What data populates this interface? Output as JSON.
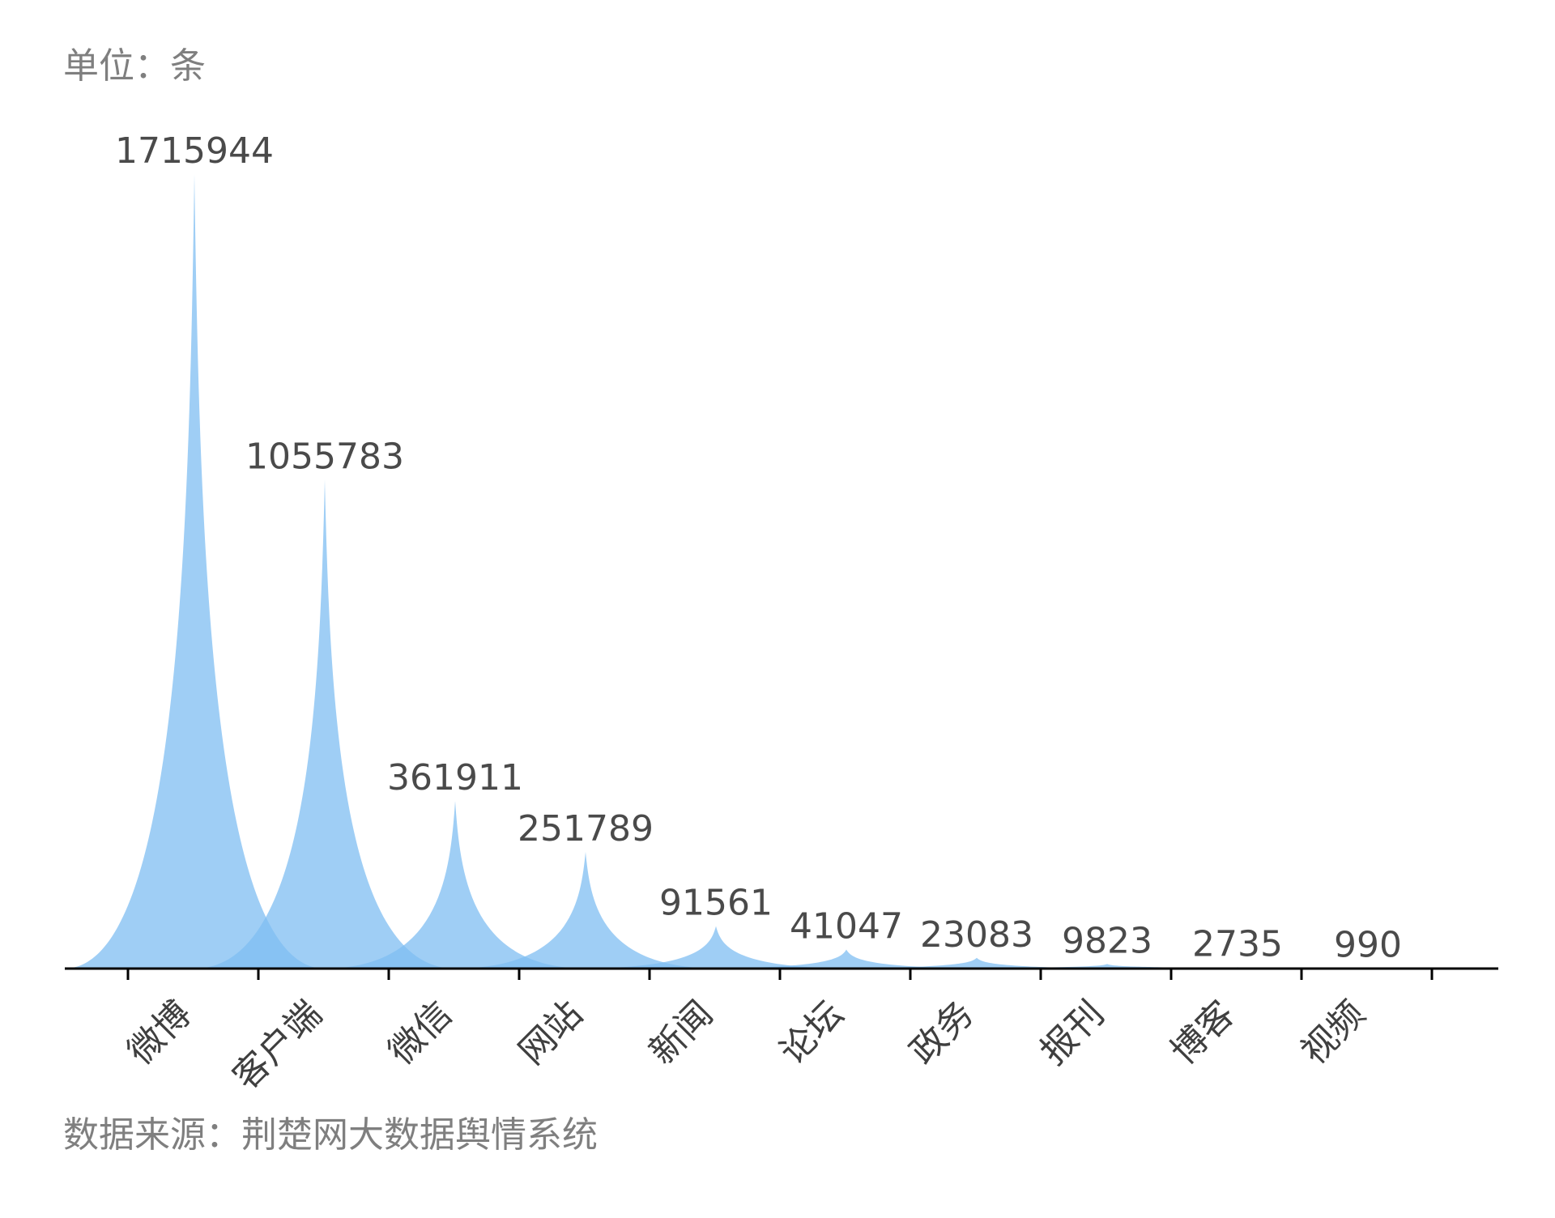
{
  "unit_text": "单位：条",
  "source_text": "数据来源：荆楚网大数据舆情系统",
  "colors": {
    "fill": "#7fbdf2",
    "axis": "#000000",
    "value_text": "#4a4a4a",
    "category_text": "#3f3f3f",
    "note_text": "#7f7f7f"
  },
  "chart_data": {
    "type": "area",
    "shape": "pictorial-spike",
    "categories": [
      "微博",
      "客户端",
      "微信",
      "网站",
      "新闻",
      "论坛",
      "政务",
      "报刊",
      "博客",
      "视频"
    ],
    "values": [
      1715944,
      1055783,
      361911,
      251789,
      91561,
      41047,
      23083,
      9823,
      2735,
      990
    ],
    "ylim": [
      0,
      1715944
    ],
    "grid": false,
    "legend": "none",
    "title": "",
    "xlabel": "",
    "ylabel": ""
  }
}
